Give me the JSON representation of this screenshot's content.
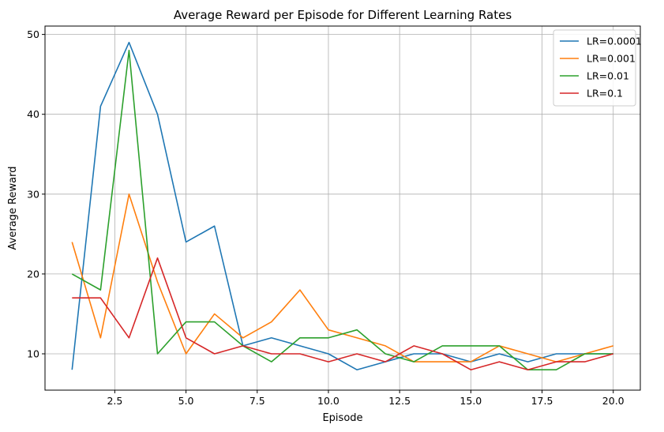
{
  "chart_data": {
    "type": "line",
    "title": "Average Reward per Episode for Different Learning Rates",
    "xlabel": "Episode",
    "ylabel": "Average Reward",
    "xlim": [
      0.05,
      20.95
    ],
    "ylim": [
      5.45,
      51.05
    ],
    "xticks": [
      2.5,
      5.0,
      7.5,
      10.0,
      12.5,
      15.0,
      17.5,
      20.0
    ],
    "xtick_labels": [
      "2.5",
      "5.0",
      "7.5",
      "10.0",
      "12.5",
      "15.0",
      "17.5",
      "20.0"
    ],
    "yticks": [
      10,
      20,
      30,
      40,
      50
    ],
    "ytick_labels": [
      "10",
      "20",
      "30",
      "40",
      "50"
    ],
    "grid": true,
    "legend_position": "top-right",
    "x": [
      1,
      2,
      3,
      4,
      5,
      6,
      7,
      8,
      9,
      10,
      11,
      12,
      13,
      14,
      15,
      16,
      17,
      18,
      19,
      20
    ],
    "series": [
      {
        "name": "LR=0.0001",
        "color": "#1f77b4",
        "values": [
          8,
          41,
          49,
          40,
          24,
          26,
          11,
          12,
          11,
          10,
          8,
          9,
          10,
          10,
          9,
          10,
          9,
          10,
          10,
          10
        ]
      },
      {
        "name": "LR=0.001",
        "color": "#ff7f0e",
        "values": [
          24,
          12,
          30,
          19,
          10,
          15,
          12,
          14,
          18,
          13,
          12,
          11,
          9,
          9,
          9,
          11,
          10,
          9,
          10,
          11
        ]
      },
      {
        "name": "LR=0.01",
        "color": "#2ca02c",
        "values": [
          20,
          18,
          48,
          10,
          14,
          14,
          11,
          9,
          12,
          12,
          13,
          10,
          9,
          11,
          11,
          11,
          8,
          8,
          10,
          10
        ]
      },
      {
        "name": "LR=0.1",
        "color": "#d62728",
        "values": [
          17,
          17,
          12,
          22,
          12,
          10,
          11,
          10,
          10,
          9,
          10,
          9,
          11,
          10,
          8,
          9,
          8,
          9,
          9,
          10
        ]
      }
    ]
  }
}
